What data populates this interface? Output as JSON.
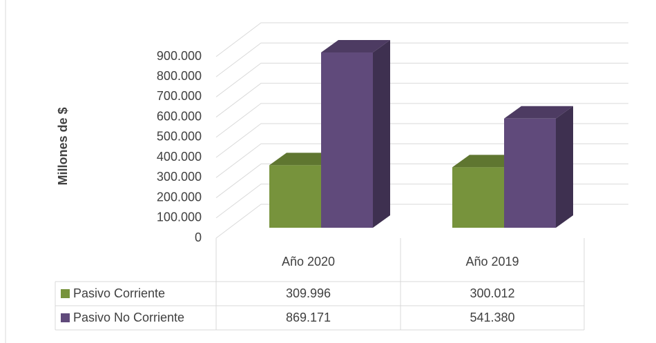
{
  "chart_data": {
    "type": "bar3d",
    "y_axis_label": "Millones de $",
    "categories": [
      "Año 2020",
      "Año 2019"
    ],
    "series": [
      {
        "name": "Pasivo Corriente",
        "color": "#77933c",
        "values": [
          309996,
          300012
        ],
        "value_labels": [
          "309.996",
          "300.012"
        ]
      },
      {
        "name": "Pasivo No Corriente",
        "color": "#604a7b",
        "values": [
          869171,
          541380
        ],
        "value_labels": [
          "869.171",
          "541.380"
        ]
      }
    ],
    "ylim": [
      0,
      900000
    ],
    "yticks": [
      0,
      {
        "value": 100000,
        "label": "100.000"
      },
      {
        "value": 200000,
        "label": "200.000"
      },
      {
        "value": 300000,
        "label": "300.000"
      },
      {
        "value": 400000,
        "label": "400.000"
      },
      {
        "value": 500000,
        "label": "500.000"
      },
      {
        "value": 600000,
        "label": "600.000"
      },
      {
        "value": 700000,
        "label": "700.000"
      },
      {
        "value": 800000,
        "label": "800.000"
      },
      {
        "value": 900000,
        "label": "900.000"
      }
    ],
    "grid": true
  }
}
